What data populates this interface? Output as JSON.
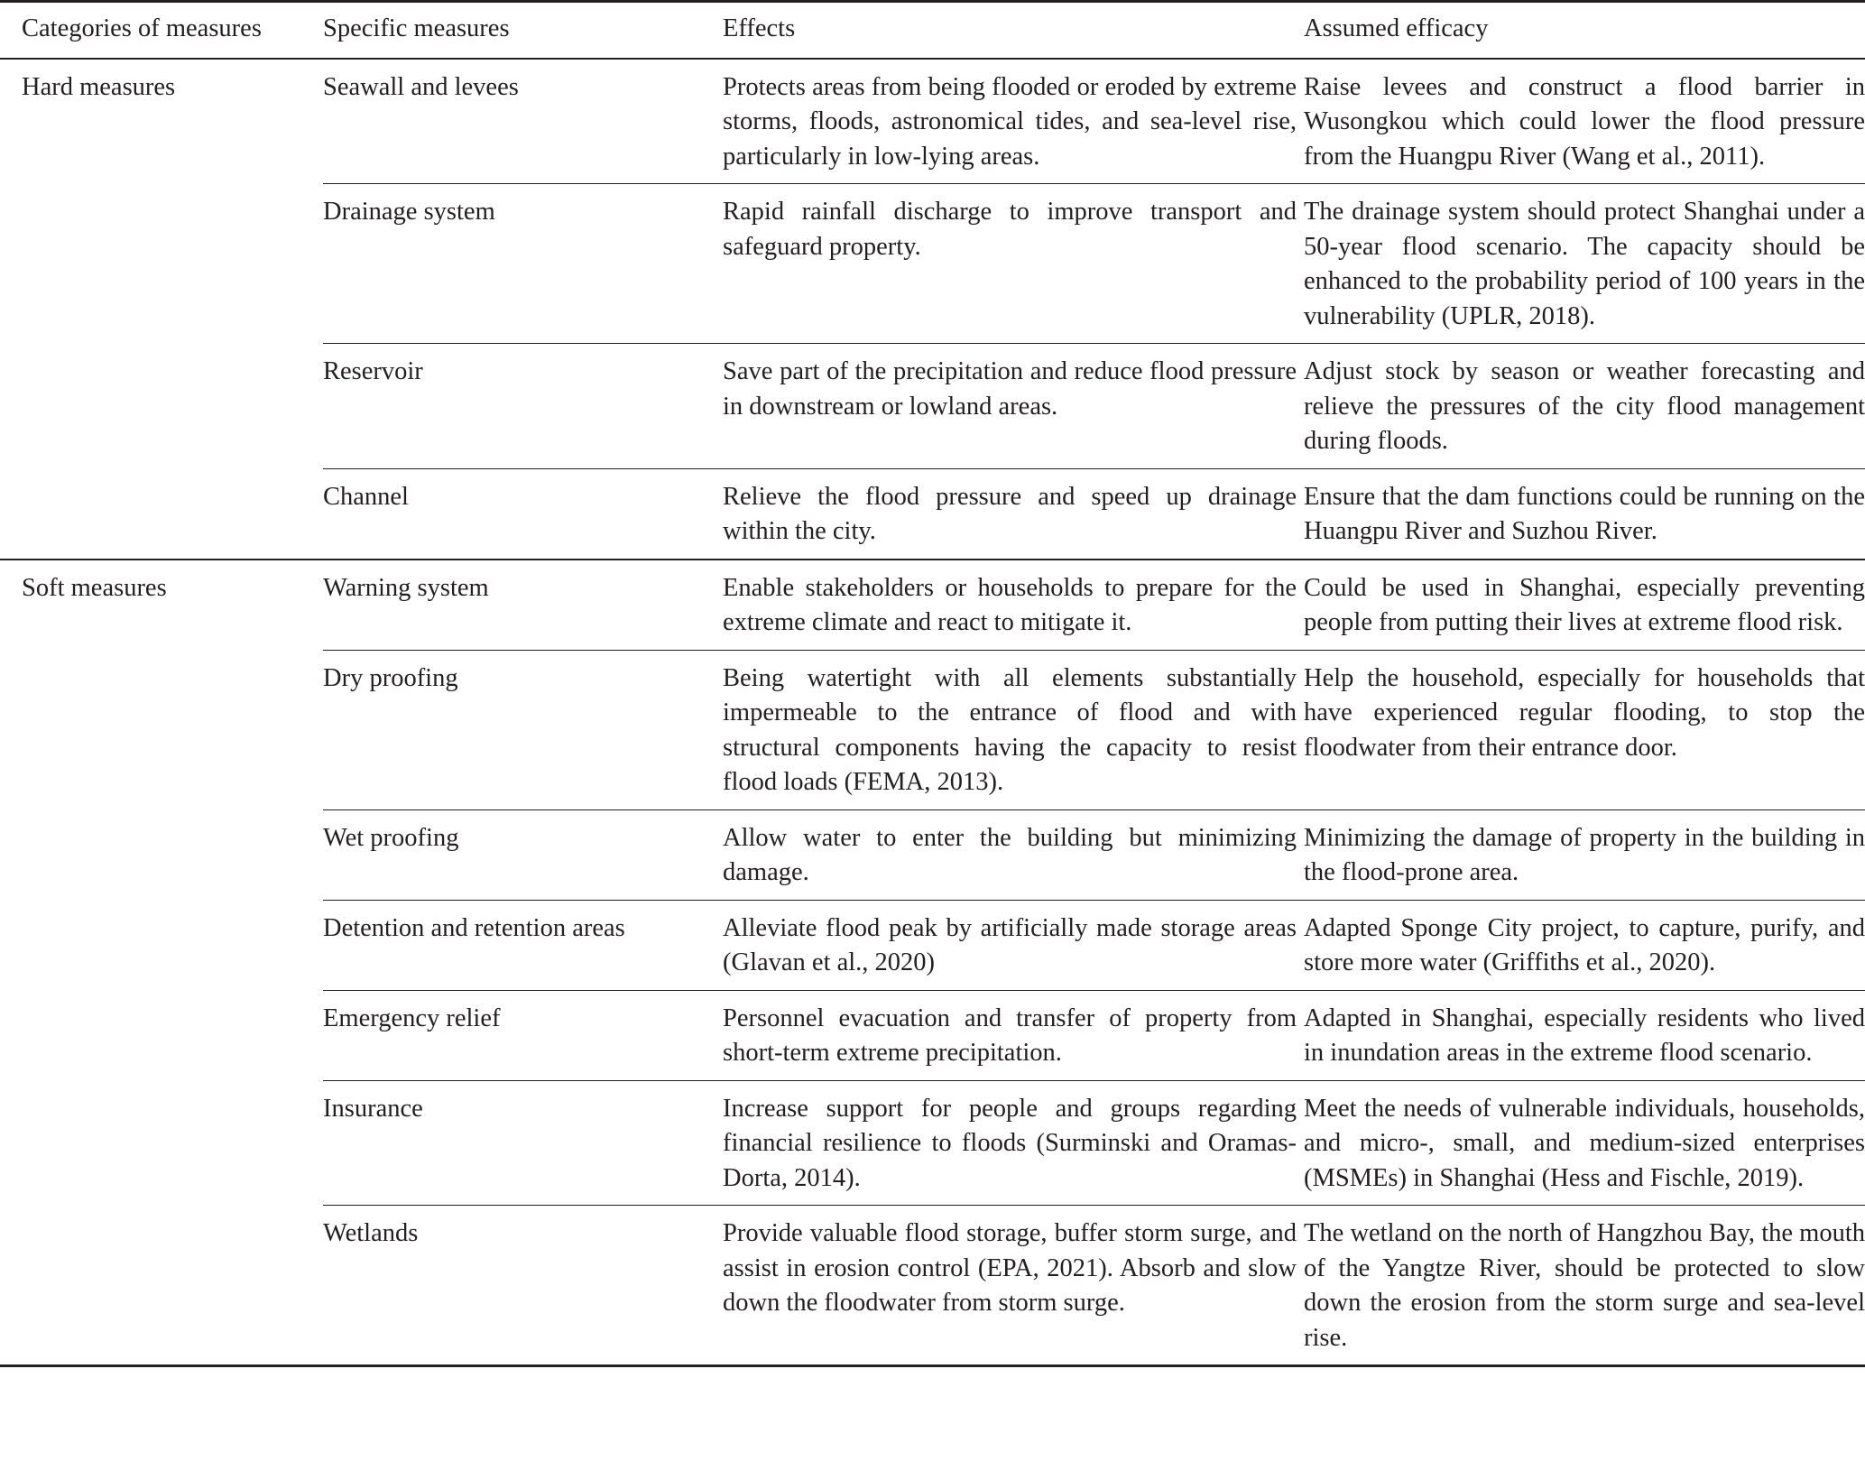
{
  "headers": [
    "Categories of measures",
    "Specific measures",
    "Effects",
    "Assumed efficacy"
  ],
  "groups": [
    {
      "category": "Hard measures",
      "rows": [
        {
          "measure": "Seawall and levees",
          "effects": "Protects areas from being flooded or eroded by extreme storms, floods, astronomical tides, and sea-level rise, particularly in low-lying areas.",
          "efficacy": "Raise levees and construct a flood barrier in Wusongkou which could lower the flood pressure from the Huangpu River (Wang et al., 2011)."
        },
        {
          "measure": "Drainage system",
          "effects": "Rapid rainfall discharge to improve transport and safeguard property.",
          "efficacy": "The drainage system should protect Shanghai under a 50-year flood scenario. The capacity should be enhanced to the probability period of 100 years in the vulnerability (UPLR, 2018)."
        },
        {
          "measure": "Reservoir",
          "effects": "Save part of the precipitation and reduce flood pressure in downstream or lowland areas.",
          "efficacy": "Adjust stock by season or weather forecasting and relieve the pressures of the city flood management during floods."
        },
        {
          "measure": "Channel",
          "effects": "Relieve the flood pressure and speed up drainage within the city.",
          "efficacy": "Ensure that the dam functions could be running on the Huangpu River and Suzhou River."
        }
      ]
    },
    {
      "category": "Soft measures",
      "rows": [
        {
          "measure": "Warning system",
          "effects": "Enable stakeholders or households to prepare for the extreme climate and react to mitigate it.",
          "efficacy": "Could be used in Shanghai, especially preventing people from putting their lives at extreme flood risk."
        },
        {
          "measure": "Dry proofing",
          "effects": "Being watertight with all elements substantially impermeable to the entrance of flood and with structural components having the capacity to resist flood loads (FEMA, 2013).",
          "efficacy": "Help the household, especially for households that have experienced regular flooding, to stop the floodwater from their entrance door."
        },
        {
          "measure": "Wet proofing",
          "effects": "Allow water to enter the building but minimizing damage.",
          "efficacy": "Minimizing the damage of property in the building in the flood-prone area."
        },
        {
          "measure": "Detention and retention areas",
          "effects": "Alleviate flood peak by artificially made storage areas (Glavan et al., 2020)",
          "efficacy": "Adapted Sponge City project, to capture, purify, and store more water (Griffiths et al., 2020)."
        },
        {
          "measure": "Emergency relief",
          "effects": "Personnel evacuation and transfer of property from short-term extreme precipitation.",
          "efficacy": "Adapted in Shanghai, especially residents who lived in inundation areas in the extreme flood scenario."
        },
        {
          "measure": "Insurance",
          "effects": "Increase support for people and groups regarding financial resilience to floods (Surminski and Oramas-Dorta, 2014).",
          "efficacy": "Meet the needs of vulnerable individuals, households, and micro-, small, and medium-sized enterprises (MSMEs) in Shanghai (Hess and Fischle, 2019)."
        },
        {
          "measure": "Wetlands",
          "effects": "Provide valuable flood storage, buffer storm surge, and assist in erosion control (EPA, 2021). Absorb and slow down the floodwater from storm surge.",
          "efficacy": "The wetland on the north of Hangzhou Bay, the mouth of the Yangtze River, should be protected to slow down the erosion from the storm surge and sea-level rise."
        }
      ]
    }
  ]
}
